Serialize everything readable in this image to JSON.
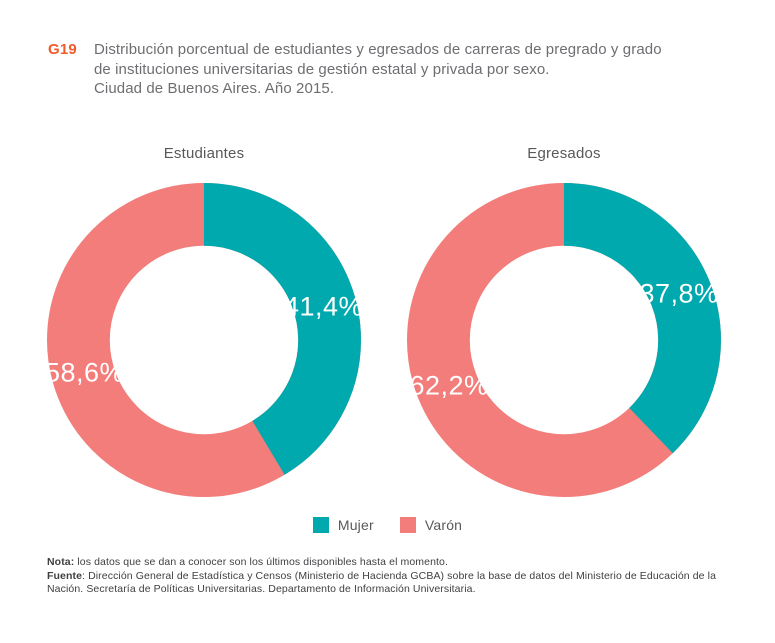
{
  "header": {
    "code": "G19",
    "title_lines": [
      "Distribución porcentual de estudiantes y egresados de carreras de pregrado y grado",
      "de instituciones universitarias de gestión estatal y privada por sexo.",
      "Ciudad de Buenos Aires. Año 2015."
    ]
  },
  "chart_data": [
    {
      "type": "pie",
      "subtype": "donut",
      "title": "Estudiantes",
      "labels": [
        "Mujer",
        "Varón"
      ],
      "values": [
        41.4,
        58.6
      ],
      "value_labels": [
        "41,4%",
        "58,6%"
      ],
      "colors": [
        "#00a9ae",
        "#f27d7a"
      ],
      "start_angle_deg": 0,
      "direction": "clockwise",
      "inner_radius_ratio": 0.6
    },
    {
      "type": "pie",
      "subtype": "donut",
      "title": "Egresados",
      "labels": [
        "Mujer",
        "Varón"
      ],
      "values": [
        37.8,
        62.2
      ],
      "value_labels": [
        "37,8%",
        "62,2%"
      ],
      "colors": [
        "#00a9ae",
        "#f27d7a"
      ],
      "start_angle_deg": 0,
      "direction": "clockwise",
      "inner_radius_ratio": 0.6
    }
  ],
  "legend": {
    "position": "bottom-center",
    "items": [
      {
        "label": "Mujer",
        "color": "#00a9ae"
      },
      {
        "label": "Varón",
        "color": "#f27d7a"
      }
    ]
  },
  "footnote": {
    "nota_label": "Nota:",
    "nota_text": " los datos que se dan a conocer son los últimos disponibles hasta el momento.",
    "fuente_label": "Fuente",
    "fuente_text": ": Dirección General de Estadística y Censos (Ministerio de Hacienda GCBA) sobre la base de datos del Ministerio de Educación de la Nación. Secretaría de Políticas Universitarias. Departamento de Información Universitaria."
  },
  "colors": {
    "accent_code": "#f15b2b",
    "title_text": "#6d6e71",
    "body_text": "#58595b",
    "footnote_text": "#3f4042",
    "slice_label": "#ffffff",
    "background": "#ffffff"
  }
}
